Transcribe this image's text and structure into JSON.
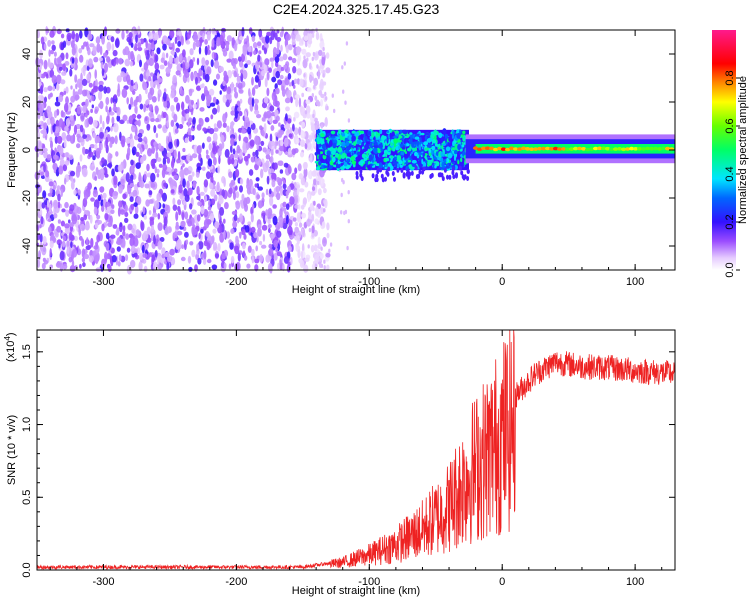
{
  "title": "C2E4.2024.325.17.45.G23",
  "chart_data": [
    {
      "type": "heatmap",
      "name": "spectrogram",
      "xlabel": "Height of straight line (km)",
      "ylabel": "Frequency (Hz)",
      "xlim": [
        -350,
        130
      ],
      "ylim": [
        -50,
        50
      ],
      "xticks": [
        -300,
        -200,
        -100,
        0,
        100
      ],
      "yticks": [
        -40,
        -20,
        0,
        20,
        40
      ],
      "colorbar": {
        "label": "Normalized spectral amplitude",
        "range": [
          0,
          1
        ],
        "ticks": [
          "0.0",
          "0.2",
          "0.4",
          "0.6",
          "0.8"
        ],
        "tick_values": [
          0.0,
          0.2,
          0.4,
          0.6,
          0.8
        ],
        "colormap": "rainbow (white-violet-blue-cyan-green-yellow-red-magenta)"
      },
      "regions": [
        {
          "x_range": [
            -350,
            -140
          ],
          "description_level": "noise",
          "amplitude": 0.1,
          "freq_range": [
            -50,
            50
          ]
        },
        {
          "x_range": [
            -140,
            -25
          ],
          "description_level": "signal onset",
          "amplitude": 0.4,
          "freq_center": 0,
          "freq_halfwidth": 6
        },
        {
          "x_range": [
            -20,
            130
          ],
          "description_level": "carrier",
          "amplitude": 0.8,
          "freq_center": 0.5,
          "freq_halfwidth": 2
        }
      ]
    },
    {
      "type": "line",
      "name": "snr",
      "xlabel": "Height of straight line (km)",
      "ylabel": "SNR (10 * v/v)",
      "scale_label": "(x10",
      "scale_exp": "4",
      "scale_close": ")",
      "xlim": [
        -350,
        130
      ],
      "ylim": [
        0,
        16500
      ],
      "xticks": [
        -300,
        -200,
        -100,
        0,
        100
      ],
      "yticks": [
        0,
        5000,
        10000,
        15000
      ],
      "ytick_labels": [
        "0.0",
        "0.5",
        "1.0",
        "1.5"
      ],
      "color": "#ee2222",
      "profile": [
        [
          -350,
          200
        ],
        [
          -150,
          200
        ],
        [
          -120,
          600
        ],
        [
          -100,
          1200
        ],
        [
          -80,
          2000
        ],
        [
          -60,
          3200
        ],
        [
          -40,
          5000
        ],
        [
          -25,
          7500
        ],
        [
          -10,
          9200
        ],
        [
          0,
          10500
        ],
        [
          10,
          12000
        ],
        [
          25,
          13500
        ],
        [
          40,
          14300
        ],
        [
          60,
          14000
        ],
        [
          80,
          13900
        ],
        [
          100,
          13700
        ],
        [
          130,
          13500
        ]
      ]
    }
  ]
}
